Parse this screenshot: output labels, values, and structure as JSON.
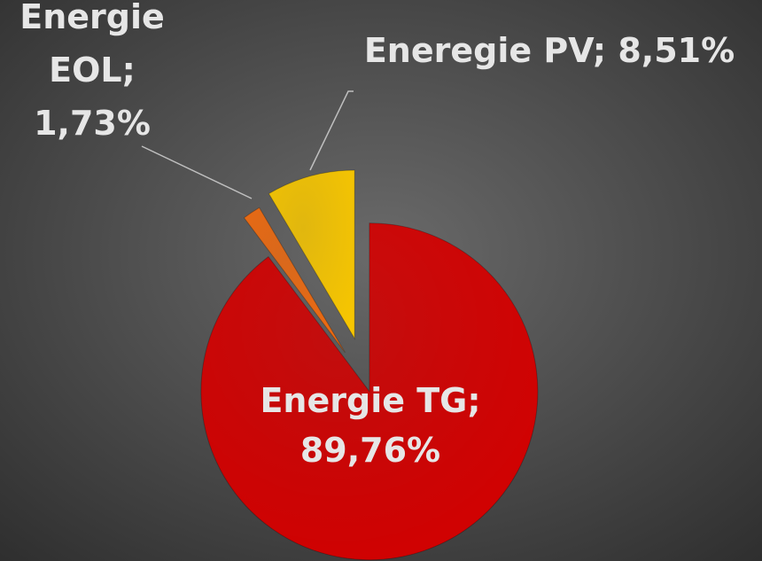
{
  "chart_data": {
    "type": "pie",
    "values": [
      89.76,
      1.73,
      8.51
    ],
    "value_labels": [
      "Energie TG; 89,76%",
      "Energie EOL; 1,73%",
      "Eneregie PV; 8,51%"
    ],
    "colors": [
      "#d40000",
      "#ee6a10",
      "#f7c600"
    ]
  }
}
